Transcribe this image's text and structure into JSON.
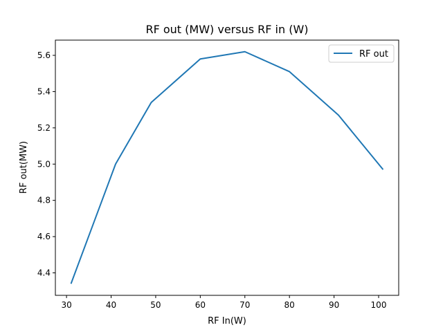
{
  "chart_data": {
    "type": "line",
    "title": "RF out (MW) versus RF in (W)",
    "xlabel": "RF In(W)",
    "ylabel": "RF out(MW)",
    "xlim": [
      27.5,
      104.5
    ],
    "ylim": [
      4.276,
      5.684
    ],
    "xticks": [
      30,
      40,
      50,
      60,
      70,
      80,
      90,
      100
    ],
    "xtick_labels": [
      "30",
      "40",
      "50",
      "60",
      "70",
      "80",
      "90",
      "100"
    ],
    "yticks": [
      4.4,
      4.6,
      4.8,
      5.0,
      5.2,
      5.4,
      5.6
    ],
    "ytick_labels": [
      "4.4",
      "4.6",
      "4.8",
      "5.0",
      "5.2",
      "5.4",
      "5.6"
    ],
    "grid": false,
    "legend_position": "top-right",
    "series": [
      {
        "name": "RF out",
        "color": "#1f77b4",
        "x": [
          31,
          41,
          49,
          60,
          70,
          80,
          91,
          101
        ],
        "y": [
          4.34,
          5.0,
          5.34,
          5.58,
          5.62,
          5.51,
          5.27,
          4.97
        ]
      }
    ]
  }
}
